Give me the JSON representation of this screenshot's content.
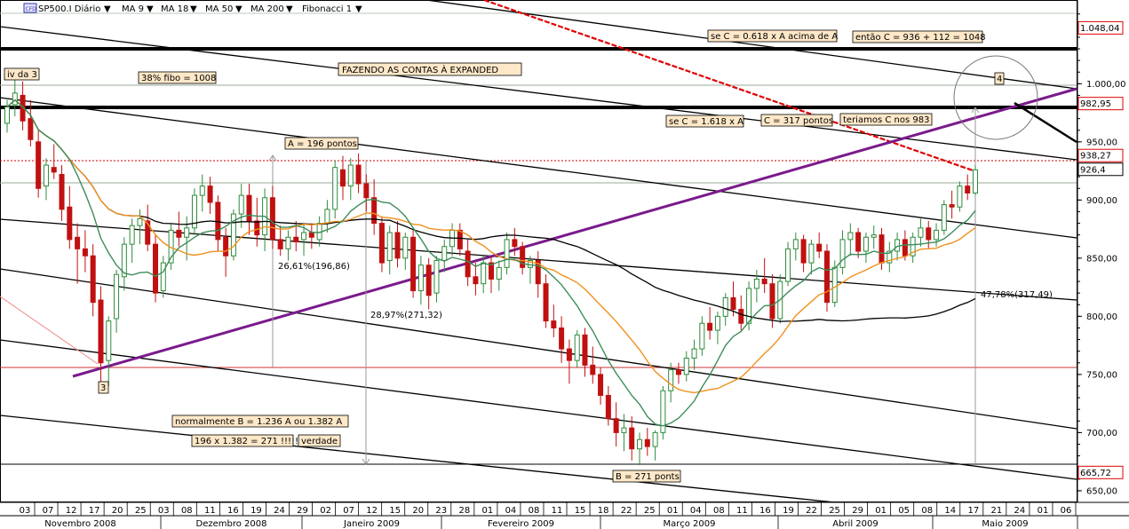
{
  "header": {
    "symbol": "SP500.I Diário",
    "ma9_label": "MA 9",
    "ma18_label": "MA 18",
    "ma50_label": "MA 50",
    "ma200_label": "MA 200",
    "fibonacci_label": "Fibonacci 1",
    "menu_arrow": "▼"
  },
  "colors": {
    "ma9": "#3c8c5a",
    "ma18": "#f0901e",
    "ma50": "#000000",
    "ma200": "#e00000",
    "channel": "#7a1a8c",
    "up_candle": "#2e8b3a",
    "down_candle": "#c01010",
    "annotation_bg": "#ffe8c8"
  },
  "chart_data": {
    "type": "candlestick",
    "ylim": [
      640,
      1072
    ],
    "y_ticks": [
      {
        "value": 1000,
        "label": "1.000,00"
      },
      {
        "value": 950,
        "label": "950,00"
      },
      {
        "value": 900,
        "label": "900,00"
      },
      {
        "value": 850,
        "label": "850,00"
      },
      {
        "value": 800,
        "label": "800,00"
      },
      {
        "value": 750,
        "label": "750,00"
      },
      {
        "value": 700,
        "label": "700,00"
      },
      {
        "value": 650,
        "label": "650,00"
      }
    ],
    "price_markers": [
      {
        "value": 1048.04,
        "label": "1.048,04",
        "color": "#e00000"
      },
      {
        "value": 982.95,
        "label": "982,95",
        "color": "#e00000"
      },
      {
        "value": 938.27,
        "label": "938,27",
        "color": "#e00000"
      },
      {
        "value": 926.4,
        "label": "926,4",
        "color": "#000000"
      },
      {
        "value": 665.72,
        "label": "665,72",
        "color": "#e00000"
      }
    ],
    "x_day_labels": [
      "03",
      "07",
      "12",
      "17",
      "20",
      "25",
      "03",
      "08",
      "11",
      "16",
      "19",
      "24",
      "29",
      "02",
      "07",
      "12",
      "15",
      "20",
      "23",
      "28",
      "01",
      "04",
      "08",
      "11",
      "15",
      "18",
      "22",
      "25",
      "01",
      "04",
      "08",
      "11",
      "16",
      "19",
      "22",
      "25",
      "29",
      "01",
      "05",
      "08",
      "14",
      "17",
      "21",
      "24",
      "01",
      "06"
    ],
    "x_month_labels": [
      "Novembro 2008",
      "Dezembro 2008",
      "Janeiro 2009",
      "Fevereiro 2009",
      "Março 2009",
      "Abril 2009",
      "Maio 2009"
    ],
    "candles": [
      [
        966,
        986,
        958,
        980
      ],
      [
        982,
        1006,
        972,
        992
      ],
      [
        990,
        1002,
        960,
        968
      ],
      [
        970,
        986,
        946,
        952
      ],
      [
        950,
        960,
        902,
        910
      ],
      [
        912,
        936,
        900,
        930
      ],
      [
        928,
        948,
        918,
        924
      ],
      [
        922,
        930,
        882,
        892
      ],
      [
        894,
        912,
        858,
        866
      ],
      [
        868,
        880,
        828,
        858
      ],
      [
        858,
        874,
        838,
        852
      ],
      [
        852,
        862,
        800,
        812
      ],
      [
        814,
        826,
        742,
        760
      ],
      [
        762,
        800,
        740,
        796
      ],
      [
        798,
        840,
        786,
        836
      ],
      [
        834,
        868,
        822,
        862
      ],
      [
        862,
        884,
        846,
        878
      ],
      [
        878,
        892,
        862,
        884
      ],
      [
        882,
        896,
        856,
        862
      ],
      [
        862,
        870,
        812,
        820
      ],
      [
        822,
        852,
        816,
        846
      ],
      [
        846,
        880,
        840,
        874
      ],
      [
        874,
        890,
        860,
        868
      ],
      [
        868,
        886,
        848,
        876
      ],
      [
        876,
        910,
        870,
        904
      ],
      [
        904,
        922,
        890,
        912
      ],
      [
        912,
        920,
        888,
        898
      ],
      [
        898,
        904,
        856,
        866
      ],
      [
        868,
        876,
        834,
        852
      ],
      [
        852,
        892,
        848,
        888
      ],
      [
        888,
        914,
        876,
        904
      ],
      [
        904,
        914,
        870,
        882
      ],
      [
        882,
        902,
        860,
        870
      ],
      [
        870,
        910,
        856,
        902
      ],
      [
        902,
        912,
        858,
        866
      ],
      [
        866,
        878,
        852,
        858
      ],
      [
        858,
        874,
        848,
        868
      ],
      [
        868,
        882,
        856,
        864
      ],
      [
        866,
        880,
        852,
        872
      ],
      [
        872,
        880,
        858,
        868
      ],
      [
        866,
        886,
        860,
        880
      ],
      [
        880,
        900,
        872,
        892
      ],
      [
        892,
        934,
        884,
        928
      ],
      [
        926,
        938,
        900,
        912
      ],
      [
        912,
        936,
        900,
        930
      ],
      [
        930,
        940,
        906,
        914
      ],
      [
        914,
        922,
        890,
        902
      ],
      [
        902,
        918,
        870,
        880
      ],
      [
        880,
        886,
        838,
        846
      ],
      [
        848,
        878,
        836,
        872
      ],
      [
        872,
        882,
        842,
        850
      ],
      [
        850,
        872,
        840,
        868
      ],
      [
        868,
        874,
        816,
        822
      ],
      [
        822,
        852,
        810,
        844
      ],
      [
        844,
        850,
        806,
        818
      ],
      [
        820,
        852,
        812,
        848
      ],
      [
        848,
        866,
        838,
        860
      ],
      [
        860,
        880,
        852,
        874
      ],
      [
        874,
        880,
        852,
        858
      ],
      [
        856,
        866,
        826,
        834
      ],
      [
        834,
        846,
        818,
        828
      ],
      [
        828,
        852,
        820,
        846
      ],
      [
        846,
        852,
        820,
        832
      ],
      [
        832,
        848,
        822,
        842
      ],
      [
        842,
        872,
        836,
        866
      ],
      [
        866,
        876,
        852,
        860
      ],
      [
        860,
        864,
        836,
        842
      ],
      [
        842,
        852,
        828,
        848
      ],
      [
        848,
        856,
        816,
        828
      ],
      [
        828,
        836,
        790,
        796
      ],
      [
        796,
        810,
        782,
        790
      ],
      [
        790,
        800,
        760,
        772
      ],
      [
        772,
        780,
        742,
        762
      ],
      [
        762,
        788,
        756,
        784
      ],
      [
        784,
        790,
        748,
        758
      ],
      [
        758,
        774,
        742,
        750
      ],
      [
        750,
        756,
        724,
        732
      ],
      [
        732,
        740,
        706,
        712
      ],
      [
        712,
        726,
        688,
        700
      ],
      [
        700,
        716,
        684,
        704
      ],
      [
        704,
        714,
        676,
        686
      ],
      [
        686,
        700,
        672,
        694
      ],
      [
        694,
        704,
        680,
        688
      ],
      [
        688,
        702,
        676,
        700
      ],
      [
        700,
        740,
        694,
        736
      ],
      [
        736,
        760,
        726,
        754
      ],
      [
        754,
        760,
        742,
        750
      ],
      [
        750,
        770,
        744,
        764
      ],
      [
        764,
        780,
        754,
        772
      ],
      [
        772,
        800,
        766,
        794
      ],
      [
        794,
        808,
        780,
        788
      ],
      [
        788,
        804,
        776,
        800
      ],
      [
        800,
        820,
        792,
        816
      ],
      [
        816,
        830,
        800,
        806
      ],
      [
        806,
        818,
        788,
        794
      ],
      [
        794,
        830,
        788,
        824
      ],
      [
        824,
        840,
        812,
        832
      ],
      [
        832,
        850,
        820,
        828
      ],
      [
        828,
        836,
        790,
        798
      ],
      [
        798,
        836,
        794,
        830
      ],
      [
        830,
        864,
        826,
        858
      ],
      [
        858,
        872,
        848,
        866
      ],
      [
        866,
        870,
        838,
        846
      ],
      [
        846,
        866,
        836,
        862
      ],
      [
        862,
        872,
        850,
        856
      ],
      [
        856,
        862,
        804,
        812
      ],
      [
        812,
        848,
        808,
        842
      ],
      [
        842,
        874,
        836,
        866
      ],
      [
        866,
        880,
        852,
        872
      ],
      [
        872,
        876,
        850,
        856
      ],
      [
        856,
        872,
        846,
        868
      ],
      [
        868,
        878,
        858,
        870
      ],
      [
        870,
        876,
        840,
        846
      ],
      [
        846,
        864,
        838,
        856
      ],
      [
        856,
        872,
        848,
        866
      ],
      [
        866,
        874,
        848,
        852
      ],
      [
        852,
        872,
        846,
        868
      ],
      [
        868,
        884,
        860,
        876
      ],
      [
        876,
        882,
        858,
        866
      ],
      [
        866,
        880,
        860,
        874
      ],
      [
        874,
        900,
        870,
        896
      ],
      [
        896,
        908,
        884,
        894
      ],
      [
        894,
        916,
        890,
        912
      ],
      [
        912,
        922,
        900,
        906
      ],
      [
        906,
        930,
        904,
        926
      ]
    ],
    "annotations": [
      {
        "text": "se C = 0.618 x A acima de A"
      },
      {
        "text": "então C = 936 + 112 = 1048"
      },
      {
        "text": "iv da 3"
      },
      {
        "text": "38% fibo = 1008"
      },
      {
        "text": "FAZENDO  AS CONTAS À EXPANDED"
      },
      {
        "text": "4"
      },
      {
        "text": "se C = 1.618 x A"
      },
      {
        "text": "C = 317 pontos"
      },
      {
        "text": "teriamos C nos 983"
      },
      {
        "text": "A = 196 pontos"
      },
      {
        "text": "26,61%(196,86)"
      },
      {
        "text": "28,97%(271,32)"
      },
      {
        "text": "47,78%(317,49)"
      },
      {
        "text": "3"
      },
      {
        "text": "normalmente B = 1.236 A ou 1.382 A"
      },
      {
        "text": "196 x 1.382 = 271 !!!!!"
      },
      {
        "text": "verdade"
      },
      {
        "text": "B = 271 ponts"
      }
    ]
  }
}
